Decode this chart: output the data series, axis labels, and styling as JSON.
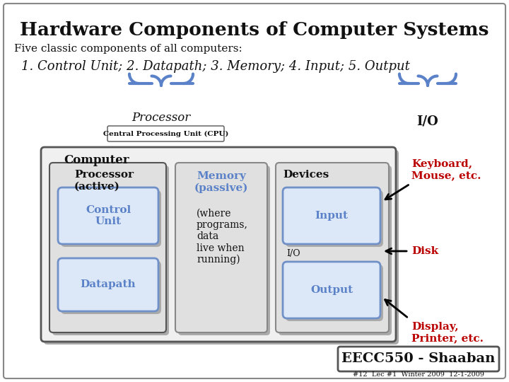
{
  "title": "Hardware Components of Computer Systems",
  "subtitle": "Five classic components of all computers:",
  "components_line": "1. Control Unit; 2. Datapath; 3. Memory; 4. Input; 5. Output",
  "processor_label": "Processor",
  "cpu_label": "Central Processing Unit (CPU)",
  "io_label": "I/O",
  "computer_label": "Computer",
  "processor_active": "Processor\n(active)",
  "control_unit": "Control\nUnit",
  "datapath": "Datapath",
  "memory_title": "Memory\n(passive)",
  "memory_desc": "(where\nprograms,\ndata\nlive when\nrunning)",
  "devices_label": "Devices",
  "input_label": "Input",
  "io_device_label": "I/O",
  "output_label": "Output",
  "keyboard_label": "Keyboard,\nMouse, etc.",
  "disk_label": "Disk",
  "display_label": "Display,\nPrinter, etc.",
  "footer_box": "EECC550 - Shaaban",
  "footer_small": "#12  Lec #1  Winter 2009  12-1-2009",
  "blue_color": "#5b82c8",
  "red_color": "#bb0000",
  "dark_color": "#111111",
  "white": "#ffffff",
  "light_gray": "#e8e8e8",
  "mid_gray": "#d0d0d0",
  "box_blue_edge": "#7090c8",
  "box_blue_face": "#dce8f8"
}
